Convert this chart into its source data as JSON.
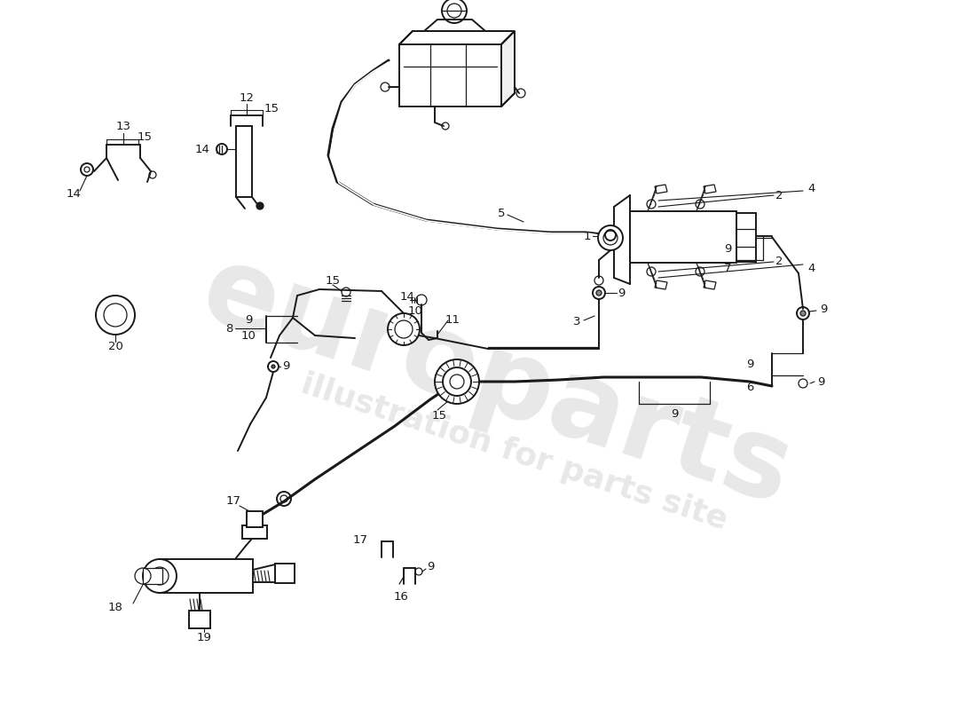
{
  "bg_color": "#ffffff",
  "line_color": "#1a1a1a",
  "figsize": [
    11.0,
    8.0
  ],
  "dpi": 100,
  "wm1": "europarts",
  "wm2": "illustration for parts site"
}
